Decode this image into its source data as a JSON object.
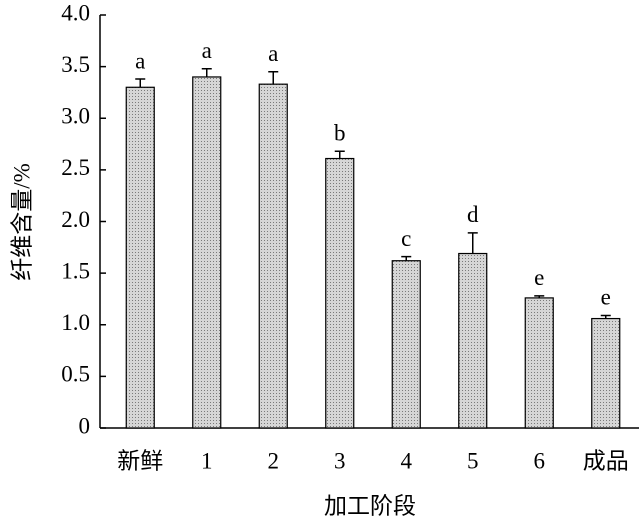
{
  "chart_data": {
    "type": "bar",
    "x_label": "加工阶段",
    "y_label": "纤维含量/%",
    "categories": [
      "新鲜",
      "1",
      "2",
      "3",
      "4",
      "5",
      "6",
      "成品"
    ],
    "values": [
      3.3,
      3.4,
      3.33,
      2.61,
      1.62,
      1.69,
      1.26,
      1.06
    ],
    "errors": [
      0.08,
      0.08,
      0.12,
      0.07,
      0.04,
      0.2,
      0.02,
      0.03
    ],
    "letters": [
      "a",
      "a",
      "a",
      "b",
      "c",
      "d",
      "e",
      "e"
    ],
    "color": "#c9c9c9",
    "ylim": [
      0,
      4
    ],
    "yticks": [
      0,
      {
        "value": 0.5,
        "label": "0.5"
      },
      {
        "value": 1,
        "label": "1.0"
      },
      {
        "value": 1.5,
        "label": "1.5"
      },
      {
        "value": 2,
        "label": "2.0"
      },
      {
        "value": 2.5,
        "label": "2.5"
      },
      {
        "value": 3,
        "label": "3.0"
      },
      {
        "value": 3.5,
        "label": "3.5"
      },
      {
        "value": 4,
        "label": "4.0"
      }
    ]
  }
}
